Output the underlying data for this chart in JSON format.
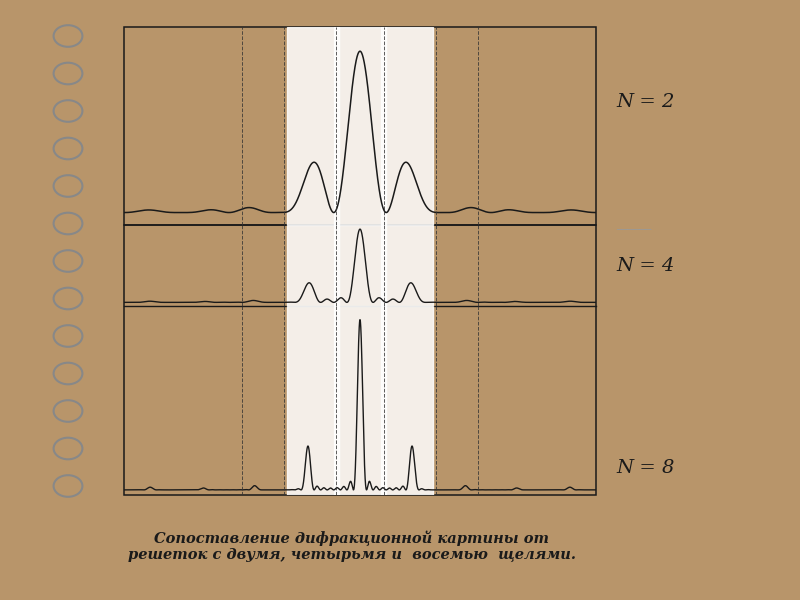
{
  "bg_color": "#b8956a",
  "paper_color": "#f5f0d0",
  "white_color": "#ffffff",
  "line_color": "#1a1a1a",
  "dashed_color": "#333333",
  "title_text": "Сопоставление дифракционной картины от\nрешеток с двумя, четырьмя и  восемью  щелями.",
  "label_N2": "N = 2",
  "label_N4": "N = 4",
  "label_N8": "N = 8",
  "figsize": [
    8.0,
    6.0
  ],
  "dpi": 100
}
